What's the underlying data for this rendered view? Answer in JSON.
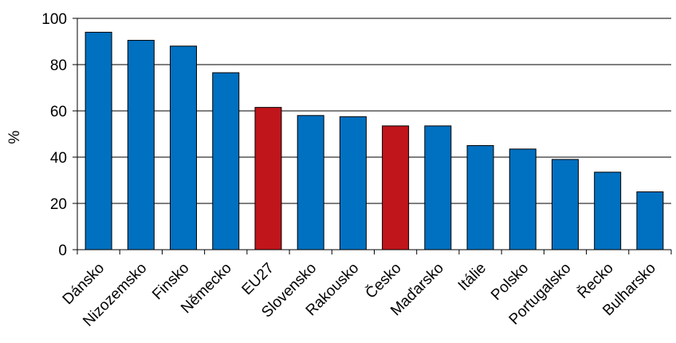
{
  "chart_data": {
    "type": "bar",
    "title": "",
    "xlabel": "",
    "ylabel": "%",
    "ylim": [
      0,
      100
    ],
    "yticks": [
      0,
      20,
      40,
      60,
      80,
      100
    ],
    "grid": true,
    "categories": [
      "Dánsko",
      "Nizozemsko",
      "Finsko",
      "Německo",
      "EU27",
      "Slovensko",
      "Rakousko",
      "Česko",
      "Maďarsko",
      "Itálie",
      "Polsko",
      "Portugalsko",
      "Řecko",
      "Bulharsko"
    ],
    "values": [
      94,
      90.5,
      88,
      76.5,
      61.5,
      58,
      57.5,
      53.5,
      53.5,
      45,
      43.5,
      39,
      33.5,
      25
    ],
    "colors": {
      "default": "#0070C0",
      "highlight": "#C0151B"
    },
    "highlight": [
      "EU27",
      "Česko"
    ]
  }
}
